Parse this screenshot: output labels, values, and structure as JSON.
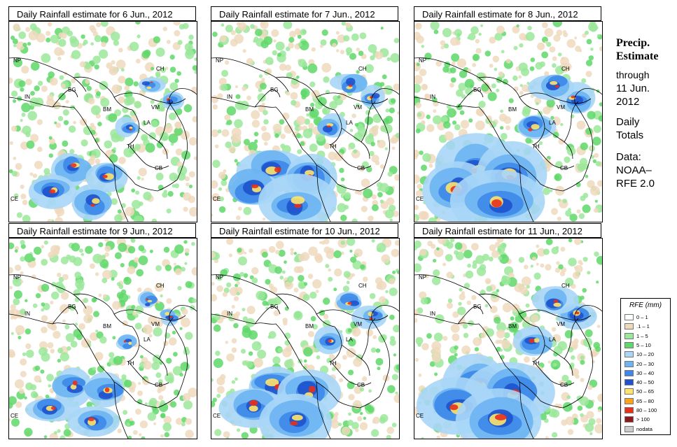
{
  "panels": [
    {
      "title": "Daily Rainfall estimate for  6 Jun., 2012",
      "intensity": 1
    },
    {
      "title": "Daily Rainfall estimate for  7 Jun., 2012",
      "intensity": 2
    },
    {
      "title": "Daily Rainfall estimate for  8 Jun., 2012",
      "intensity": 2
    },
    {
      "title": "Daily Rainfall estimate for  9 Jun., 2012",
      "intensity": 1
    },
    {
      "title": "Daily Rainfall estimate for  10 Jun., 2012",
      "intensity": 1
    },
    {
      "title": "Daily Rainfall estimate for  11 Jun., 2012",
      "intensity": 1
    }
  ],
  "country_labels": [
    "NP",
    "IN",
    "BG",
    "BM",
    "CH",
    "LA",
    "VM",
    "TH",
    "CB",
    "CE"
  ],
  "side": {
    "title_line1": "Precip.",
    "title_line2": "Estimate",
    "through": "through",
    "date_line1": "11 Jun.",
    "date_line2": "2012",
    "daily_line1": "Daily",
    "daily_line2": "Totals",
    "data_line1": "Data:",
    "data_line2": "NOAA–",
    "data_line3": "RFE 2.0"
  },
  "legend": {
    "title": "RFE (mm)",
    "items": [
      {
        "label": "0 – 1",
        "color": "#ffffff"
      },
      {
        "label": ".1 – 1",
        "color": "#efd9bd"
      },
      {
        "label": "1 – 5",
        "color": "#9be89b"
      },
      {
        "label": "5 – 10",
        "color": "#5fd86a"
      },
      {
        "label": "10 – 20",
        "color": "#a9d6f7"
      },
      {
        "label": "20 – 30",
        "color": "#6cb4f2"
      },
      {
        "label": "30 – 40",
        "color": "#3d88e8"
      },
      {
        "label": "40 – 50",
        "color": "#1f52cc"
      },
      {
        "label": "50 – 65",
        "color": "#ffe46a"
      },
      {
        "label": "65 – 80",
        "color": "#ffa31a"
      },
      {
        "label": "80 – 100",
        "color": "#e8301a"
      },
      {
        "label": "> 100",
        "color": "#8c1a1a"
      },
      {
        "label": "nodata",
        "color": "#cccccc"
      }
    ]
  }
}
